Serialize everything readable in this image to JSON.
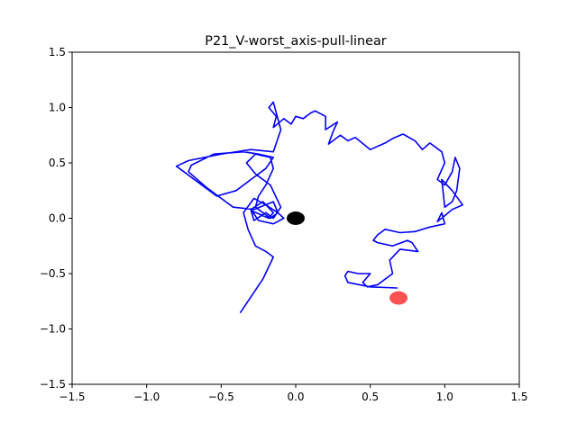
{
  "chart_data": {
    "type": "line",
    "title": "P21_V-worst_axis-pull-linear",
    "xlabel": "",
    "ylabel": "",
    "xlim": [
      -1.5,
      1.5
    ],
    "ylim": [
      -1.5,
      1.5
    ],
    "xticks": [
      -1.5,
      -1.0,
      -0.5,
      0.0,
      0.5,
      1.0,
      1.5
    ],
    "yticks": [
      -1.5,
      -1.0,
      -0.5,
      0.0,
      0.5,
      1.0,
      1.5
    ],
    "xtick_labels": [
      "−1.5",
      "−1.0",
      "−0.5",
      "0.0",
      "0.5",
      "1.0",
      "1.5"
    ],
    "ytick_labels": [
      "−1.5",
      "−1.0",
      "−0.5",
      "0.0",
      "0.5",
      "1.0",
      "1.5"
    ],
    "grid": false,
    "colors": {
      "path": "#0000ff",
      "origin_marker": "#000000",
      "target_marker": "#ff3333"
    },
    "series": [
      {
        "type": "line",
        "color": "#0000ff",
        "x": [
          -0.37,
          -0.22,
          -0.15,
          -0.2,
          -0.27,
          -0.32,
          -0.35,
          -0.28,
          -0.2,
          -0.12,
          -0.08,
          -0.15,
          -0.25,
          -0.3,
          -0.22,
          -0.15,
          -0.18,
          -0.3,
          -0.28,
          -0.2,
          -0.15,
          -0.1,
          -0.17,
          -0.27,
          -0.33,
          -0.27,
          -0.17,
          -0.15,
          -0.2,
          -0.25,
          -0.27,
          -0.17,
          -0.12,
          -0.15,
          -0.28,
          -0.42,
          -0.6,
          -0.72,
          -0.7,
          -0.55,
          -0.35,
          -0.25,
          -0.15,
          -0.2,
          -0.3,
          -0.4,
          -0.53,
          -0.8,
          -0.72,
          -0.5,
          -0.3,
          -0.15,
          -0.1,
          -0.15,
          -0.18,
          -0.13,
          -0.15,
          -0.08,
          -0.03,
          0.0,
          0.05,
          0.1,
          0.13,
          0.2,
          0.2,
          0.28,
          0.25,
          0.22,
          0.27,
          0.3,
          0.35,
          0.4,
          0.5,
          0.6,
          0.65,
          0.72,
          0.8,
          0.85,
          0.9,
          0.98,
          1.0,
          0.95,
          1.0,
          1.05,
          1.07,
          1.1,
          1.08,
          1.05,
          1.0,
          0.98,
          1.05,
          1.12,
          1.05,
          0.98,
          0.95,
          0.98,
          1.0,
          0.9,
          0.8,
          0.7,
          0.6,
          0.55,
          0.52,
          0.55,
          0.65,
          0.75,
          0.78,
          0.82,
          0.7,
          0.63,
          0.65,
          0.55,
          0.48,
          0.45,
          0.5,
          0.42,
          0.35,
          0.33,
          0.35,
          0.5,
          0.68
        ],
        "y": [
          -0.85,
          -0.55,
          -0.35,
          -0.3,
          -0.25,
          -0.1,
          0.05,
          0.18,
          0.12,
          0.05,
          0.0,
          -0.05,
          -0.02,
          0.08,
          0.15,
          0.05,
          0.0,
          0.07,
          -0.02,
          0.05,
          0.0,
          0.1,
          0.3,
          0.4,
          0.5,
          0.58,
          0.55,
          0.45,
          0.3,
          0.2,
          0.1,
          0.0,
          0.05,
          0.15,
          0.08,
          0.1,
          0.28,
          0.42,
          0.48,
          0.58,
          0.6,
          0.58,
          0.55,
          0.45,
          0.35,
          0.25,
          0.2,
          0.47,
          0.52,
          0.58,
          0.62,
          0.6,
          0.8,
          1.05,
          1.0,
          0.92,
          0.82,
          0.9,
          0.85,
          0.92,
          0.9,
          0.95,
          0.97,
          0.92,
          0.8,
          0.87,
          0.78,
          0.67,
          0.72,
          0.75,
          0.7,
          0.73,
          0.62,
          0.68,
          0.72,
          0.76,
          0.7,
          0.62,
          0.68,
          0.6,
          0.5,
          0.35,
          0.3,
          0.42,
          0.55,
          0.45,
          0.25,
          0.15,
          0.1,
          0.35,
          0.25,
          0.12,
          0.08,
          0.0,
          -0.03,
          0.05,
          -0.05,
          -0.08,
          -0.12,
          -0.13,
          -0.1,
          -0.15,
          -0.2,
          -0.22,
          -0.25,
          -0.2,
          -0.22,
          -0.3,
          -0.28,
          -0.38,
          -0.5,
          -0.6,
          -0.62,
          -0.58,
          -0.5,
          -0.5,
          -0.48,
          -0.52,
          -0.58,
          -0.62,
          -0.63
        ]
      }
    ],
    "markers": [
      {
        "name": "origin",
        "x": 0.0,
        "y": 0.0,
        "color": "#000000"
      },
      {
        "name": "target",
        "x": 0.69,
        "y": -0.72,
        "color": "#ff3333",
        "opacity": 0.85
      }
    ]
  }
}
